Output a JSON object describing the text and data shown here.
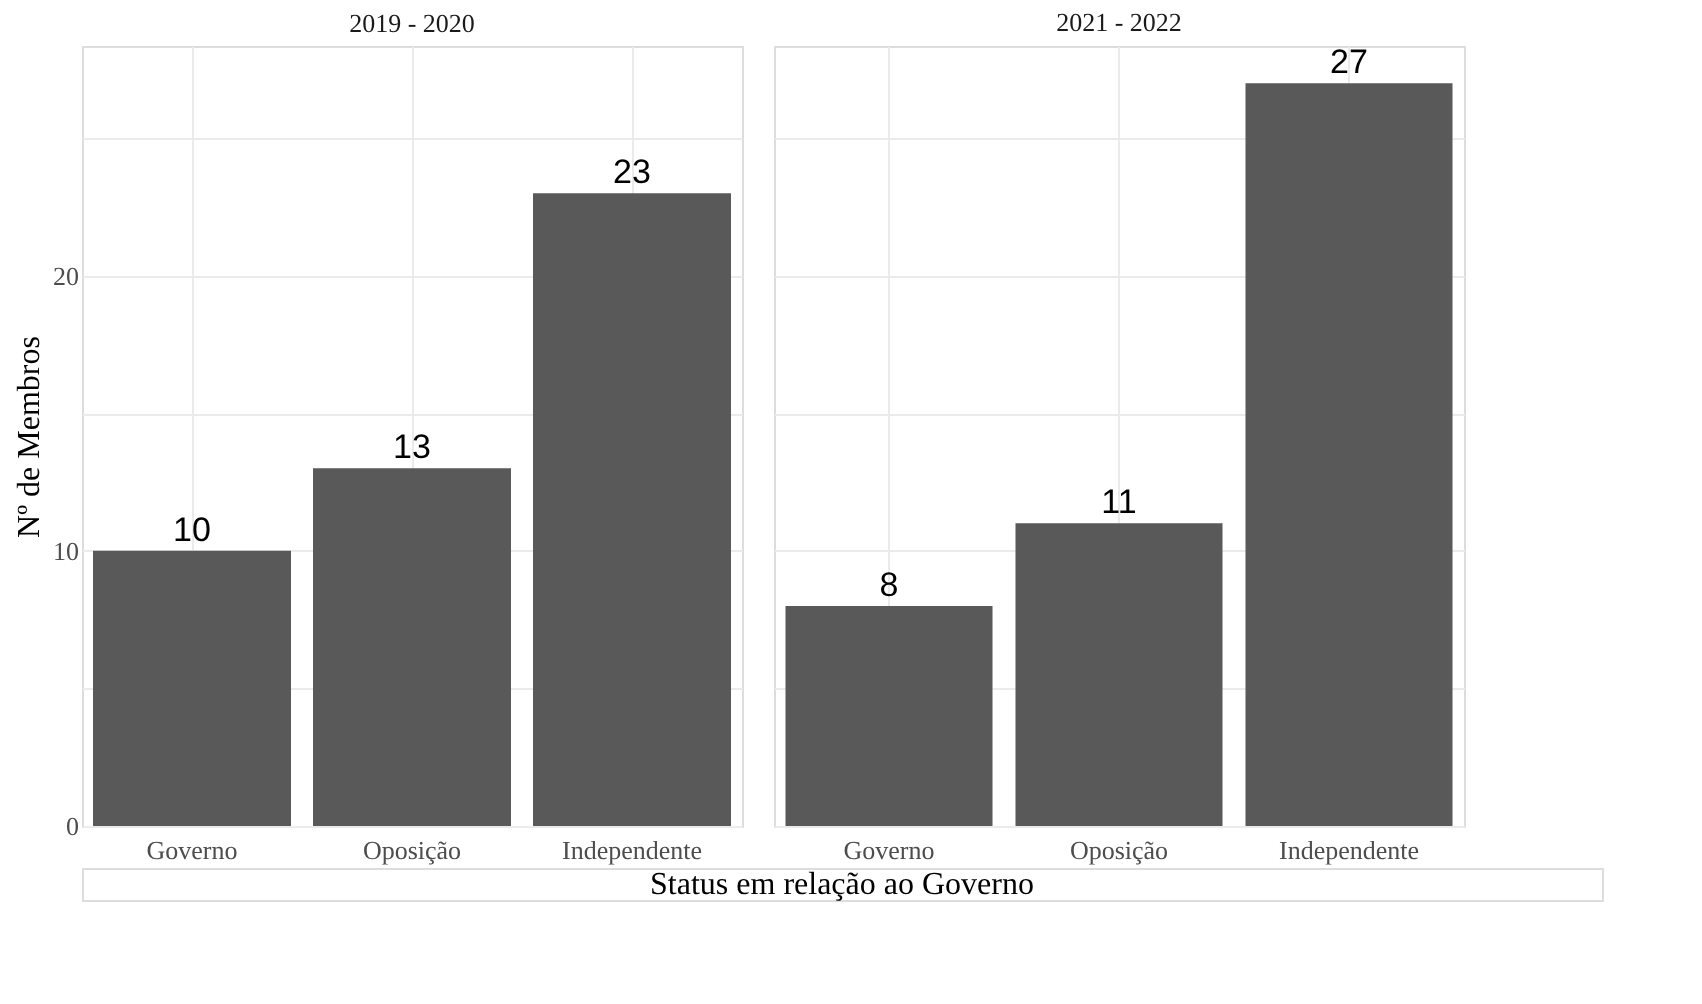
{
  "chart_data": [
    {
      "type": "bar",
      "title": "2019 - 2020",
      "xlabel": "Status em relação ao Governo",
      "ylabel": "Nº de Membros",
      "categories": [
        "Governo",
        "Oposição",
        "Independente"
      ],
      "values": [
        10,
        13,
        23
      ],
      "color": "#595959",
      "data_labels": true,
      "ylim": [
        0,
        28.35
      ],
      "yticks": [
        0,
        {
          "value": 5,
          "label": null
        },
        10,
        {
          "value": 15,
          "label": null
        },
        20,
        {
          "value": 25,
          "label": null
        }
      ],
      "grid": true
    },
    {
      "type": "bar",
      "title": "2021 - 2022",
      "categories": [
        "Governo",
        "Oposição",
        "Independente"
      ],
      "values": [
        8,
        11,
        27
      ],
      "color": "#595959",
      "data_labels": true,
      "ylim": [
        0,
        28.35
      ],
      "yticks": [
        0,
        {
          "value": 5,
          "label": null
        },
        10,
        {
          "value": 15,
          "label": null
        },
        20,
        {
          "value": 25,
          "label": null
        }
      ],
      "grid": true,
      "tick_labels": "x"
    }
  ]
}
